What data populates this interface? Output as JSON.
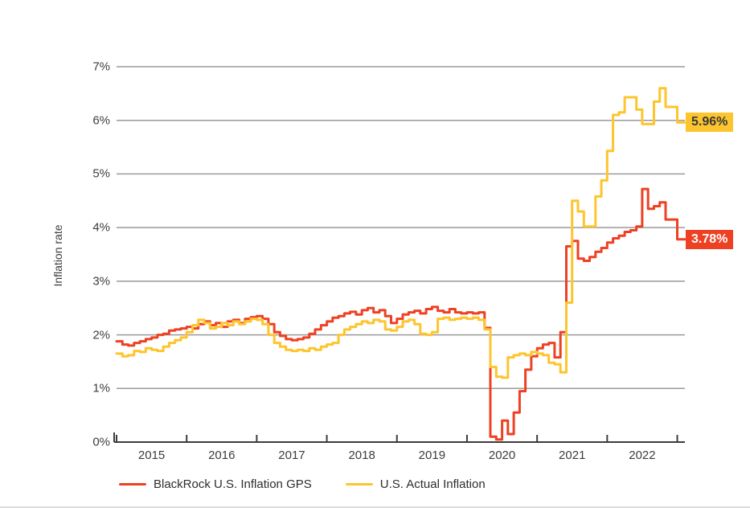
{
  "chart_data": {
    "type": "line",
    "subtype": "step",
    "title": "",
    "ylabel": "Inflation rate",
    "ylim": [
      0,
      7
    ],
    "grid": true,
    "legend_position": "bottom",
    "y_tick_labels": [
      "0%",
      "1%",
      "2%",
      "3%",
      "4%",
      "5%",
      "6%",
      "7%"
    ],
    "x_tick_labels": [
      "2015",
      "2016",
      "2017",
      "2018",
      "2019",
      "2020",
      "2021",
      "2022"
    ],
    "x_resolution": "monthly steps, Jan 2015 through early 2023",
    "series": [
      {
        "name": "BlackRock U.S. Inflation GPS",
        "color": "#ee4123",
        "end_label": "3.78%",
        "end_label_text_color": "#ffffff",
        "values": [
          1.88,
          1.82,
          1.8,
          1.85,
          1.88,
          1.92,
          1.95,
          2.0,
          2.02,
          2.08,
          2.1,
          2.12,
          2.15,
          2.12,
          2.2,
          2.25,
          2.18,
          2.22,
          2.15,
          2.25,
          2.28,
          2.22,
          2.3,
          2.33,
          2.35,
          2.3,
          2.2,
          2.05,
          1.98,
          1.92,
          1.9,
          1.92,
          1.95,
          2.02,
          2.1,
          2.18,
          2.25,
          2.32,
          2.35,
          2.4,
          2.43,
          2.38,
          2.46,
          2.5,
          2.42,
          2.46,
          2.35,
          2.22,
          2.3,
          2.38,
          2.42,
          2.45,
          2.4,
          2.48,
          2.52,
          2.45,
          2.42,
          2.48,
          2.42,
          2.4,
          2.42,
          2.4,
          2.42,
          2.13,
          0.1,
          0.05,
          0.4,
          0.15,
          0.55,
          0.95,
          1.35,
          1.6,
          1.75,
          1.82,
          1.85,
          1.58,
          2.05,
          3.65,
          3.75,
          3.42,
          3.38,
          3.45,
          3.55,
          3.62,
          3.72,
          3.8,
          3.85,
          3.92,
          3.95,
          4.02,
          4.72,
          4.35,
          4.4,
          4.47,
          4.15,
          4.15,
          3.78,
          3.78
        ]
      },
      {
        "name": "U.S. Actual Inflation",
        "color": "#fdc52d",
        "end_label": "5.96%",
        "end_label_text_color": "#3a3a3a",
        "values": [
          1.65,
          1.6,
          1.62,
          1.7,
          1.68,
          1.75,
          1.72,
          1.7,
          1.78,
          1.85,
          1.9,
          1.95,
          2.05,
          2.18,
          2.28,
          2.22,
          2.12,
          2.15,
          2.22,
          2.18,
          2.25,
          2.2,
          2.25,
          2.3,
          2.28,
          2.2,
          2.0,
          1.85,
          1.78,
          1.72,
          1.7,
          1.72,
          1.7,
          1.75,
          1.72,
          1.78,
          1.82,
          1.85,
          2.0,
          2.1,
          2.15,
          2.2,
          2.25,
          2.22,
          2.28,
          2.25,
          2.1,
          2.08,
          2.15,
          2.25,
          2.28,
          2.2,
          2.02,
          2.0,
          2.05,
          2.3,
          2.32,
          2.28,
          2.3,
          2.32,
          2.3,
          2.32,
          2.28,
          2.1,
          1.4,
          1.22,
          1.2,
          1.58,
          1.62,
          1.65,
          1.62,
          1.68,
          1.65,
          1.62,
          1.48,
          1.45,
          1.3,
          2.6,
          4.5,
          4.3,
          4.02,
          4.02,
          4.58,
          4.88,
          5.43,
          6.1,
          6.15,
          6.43,
          6.43,
          6.2,
          5.93,
          5.93,
          6.35,
          6.6,
          6.25,
          6.25,
          5.96,
          5.96
        ]
      }
    ],
    "colors": {
      "grid": "#9a9a9a",
      "axis": "#3c3c3c",
      "tick_text": "#3d3d3d"
    }
  }
}
